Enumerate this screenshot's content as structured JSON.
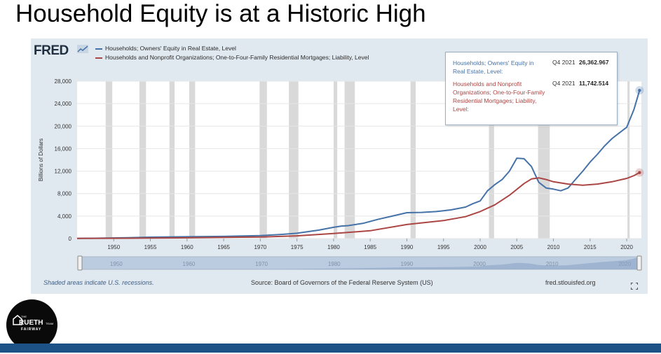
{
  "slide": {
    "title": "Household Equity is at a Historic High"
  },
  "fred": {
    "logo_text": "FRED",
    "logo_icon": "fred-chart-icon",
    "footer_note": "Shaded areas indicate U.S. recessions.",
    "source": "Source: Board of Governors of the Federal Reserve System (US)",
    "site": "fred.stlouisfed.org",
    "fullscreen_icon": "fullscreen-icon"
  },
  "tooltip": {
    "rows": [
      {
        "name": "Households; Owners' Equity in Real Estate, Level:",
        "date": "Q4 2021",
        "value": "26,362.967",
        "color": "#4572a7"
      },
      {
        "name": "Households and Nonprofit Organizations; One-to-Four-Family Residential Mortgages; Liability, Level:",
        "date": "Q4 2021",
        "value": "11,742.514",
        "color": "#aa4643"
      }
    ]
  },
  "branding": {
    "team_line1": "THE",
    "team_name": "RUETH",
    "team_suffix": "TEAM",
    "company": "FAIRWAY"
  },
  "colors": {
    "series1": "#4572a7",
    "series2": "#aa4643",
    "recession": "#d9d9d9",
    "plot_bg": "#ffffff",
    "panel_bg": "#e1e9f0",
    "bottom_bar": "#1d5287"
  },
  "chart_data": {
    "type": "line",
    "title": "",
    "xlabel": "",
    "ylabel": "Billions of Dollars",
    "xlim": [
      1945,
      2022
    ],
    "ylim": [
      0,
      28000
    ],
    "y_ticks": [
      0,
      4000,
      8000,
      12000,
      16000,
      20000,
      24000,
      28000
    ],
    "y_tick_labels": [
      "0",
      "4,000",
      "8,000",
      "12,000",
      "16,000",
      "20,000",
      "24,000",
      "28,000"
    ],
    "x_ticks": [
      1950,
      1955,
      1960,
      1965,
      1970,
      1975,
      1980,
      1985,
      1990,
      1995,
      2000,
      2005,
      2010,
      2015,
      2020
    ],
    "x_tick_labels": [
      "1950",
      "1955",
      "1960",
      "1965",
      "1970",
      "1975",
      "1980",
      "1985",
      "1990",
      "1995",
      "2000",
      "2005",
      "2010",
      "2015",
      "2020"
    ],
    "navigator_ticks": [
      "1950",
      "1960",
      "1970",
      "1980",
      "1990",
      "2000",
      "2010",
      "2020"
    ],
    "grid": true,
    "legend": "top-left",
    "recessions": [
      [
        1948.9,
        1949.8
      ],
      [
        1953.5,
        1954.4
      ],
      [
        1957.6,
        1958.3
      ],
      [
        1960.3,
        1961.1
      ],
      [
        1969.9,
        1970.9
      ],
      [
        1973.9,
        1975.2
      ],
      [
        1980.0,
        1980.5
      ],
      [
        1981.5,
        1982.9
      ],
      [
        1990.5,
        1991.2
      ],
      [
        2001.2,
        2001.9
      ],
      [
        2007.9,
        2009.5
      ],
      [
        2020.1,
        2020.4
      ]
    ],
    "series": [
      {
        "name": "Households; Owners' Equity in Real Estate, Level",
        "x": [
          1945,
          1952,
          1955,
          1960,
          1965,
          1970,
          1973,
          1975,
          1978,
          1980,
          1981,
          1982,
          1984,
          1986,
          1988,
          1990,
          1992,
          1994,
          1996,
          1998,
          1999,
          2000,
          2001,
          2002,
          2003,
          2004,
          2005,
          2006,
          2007,
          2008,
          2009,
          2010,
          2011,
          2012,
          2013,
          2014,
          2015,
          2016,
          2017,
          2018,
          2019,
          2020,
          2021,
          2021.75
        ],
        "values": [
          20,
          150,
          250,
          320,
          380,
          520,
          750,
          950,
          1500,
          2000,
          2200,
          2300,
          2700,
          3400,
          4000,
          4600,
          4650,
          4800,
          5100,
          5600,
          6200,
          6700,
          8500,
          9600,
          10500,
          12000,
          14300,
          14200,
          12800,
          10000,
          9000,
          8800,
          8500,
          9000,
          10500,
          12000,
          13600,
          15000,
          16500,
          17800,
          18800,
          19800,
          23000,
          26362.967
        ]
      },
      {
        "name": "Households and Nonprofit Organizations; One-to-Four-Family Residential Mortgages; Liability, Level",
        "x": [
          1945,
          1952,
          1955,
          1960,
          1965,
          1970,
          1975,
          1980,
          1985,
          1990,
          1995,
          1998,
          2000,
          2002,
          2004,
          2006,
          2007,
          2008,
          2009,
          2010,
          2012,
          2014,
          2016,
          2018,
          2020,
          2021,
          2021.75
        ],
        "values": [
          20,
          60,
          90,
          140,
          210,
          280,
          480,
          900,
          1400,
          2500,
          3200,
          3900,
          4800,
          6000,
          7700,
          9800,
          10600,
          10800,
          10500,
          10100,
          9700,
          9500,
          9700,
          10100,
          10700,
          11200,
          11742.514
        ]
      }
    ]
  }
}
